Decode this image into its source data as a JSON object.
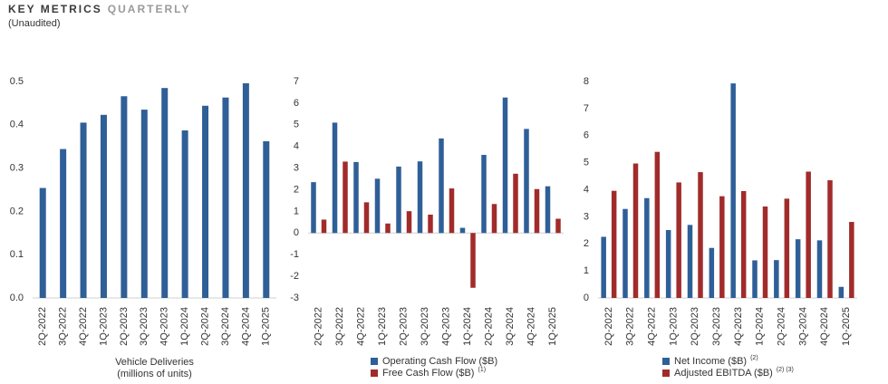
{
  "header": {
    "title_bold": "KEY METRICS",
    "title_light": "QUARTERLY",
    "subtitle": "(Unaudited)"
  },
  "chart_data": [
    {
      "type": "bar",
      "categories": [
        "2Q-2022",
        "3Q-2022",
        "4Q-2022",
        "1Q-2023",
        "2Q-2023",
        "3Q-2023",
        "4Q-2023",
        "1Q-2024",
        "2Q-2024",
        "3Q-2024",
        "4Q-2024",
        "1Q-2025"
      ],
      "values": [
        0.254,
        0.344,
        0.405,
        0.423,
        0.466,
        0.435,
        0.485,
        0.387,
        0.444,
        0.463,
        0.496,
        0.362
      ],
      "color": "#2f5f97",
      "ylim": [
        0,
        0.5
      ],
      "yticks": [
        {
          "value": 0,
          "label": "0.0"
        },
        0.1,
        0.2,
        0.3,
        0.4,
        0.5
      ],
      "x_label": [
        "Vehicle Deliveries",
        "(millions of units)"
      ]
    },
    {
      "type": "bar",
      "categories": [
        "2Q-2022",
        "3Q-2022",
        "4Q-2022",
        "1Q-2023",
        "2Q-2023",
        "3Q-2023",
        "4Q-2023",
        "1Q-2024",
        "2Q-2024",
        "3Q-2024",
        "4Q-2024",
        "1Q-2025"
      ],
      "series": [
        {
          "name": "Operating Cash Flow ($B)",
          "color": "#2f5f97",
          "values": [
            2.35,
            5.1,
            3.28,
            2.51,
            3.07,
            3.31,
            4.37,
            0.24,
            3.61,
            6.26,
            4.81,
            2.16
          ]
        },
        {
          "name": "Free Cash Flow ($B)",
          "note": "(1)",
          "color": "#a12b2b",
          "values": [
            0.62,
            3.3,
            1.42,
            0.44,
            1.01,
            0.85,
            2.06,
            -2.53,
            1.34,
            2.74,
            2.03,
            0.66
          ]
        }
      ],
      "ylim": [
        -3,
        7
      ],
      "yticks": [
        -3,
        -2,
        -1,
        0,
        1,
        2,
        3,
        4,
        5,
        6,
        7
      ]
    },
    {
      "type": "bar",
      "categories": [
        "2Q-2022",
        "3Q-2022",
        "4Q-2022",
        "1Q-2023",
        "2Q-2023",
        "3Q-2023",
        "4Q-2023",
        "1Q-2024",
        "2Q-2024",
        "3Q-2024",
        "4Q-2024",
        "1Q-2025"
      ],
      "series": [
        {
          "name": "Net Income ($B)",
          "note": "(2)",
          "color": "#2f5f97",
          "values": [
            2.26,
            3.29,
            3.69,
            2.51,
            2.7,
            1.85,
            7.93,
            1.39,
            1.4,
            2.17,
            2.13,
            0.41
          ]
        },
        {
          "name": "Adjusted EBITDA ($B)",
          "note": "(2) (3)",
          "color": "#a12b2b",
          "values": [
            3.96,
            4.97,
            5.4,
            4.27,
            4.65,
            3.76,
            3.95,
            3.38,
            3.67,
            4.67,
            4.35,
            2.81
          ]
        }
      ],
      "ylim": [
        0,
        8
      ],
      "yticks": [
        0,
        1,
        2,
        3,
        4,
        5,
        6,
        7,
        8
      ]
    }
  ]
}
